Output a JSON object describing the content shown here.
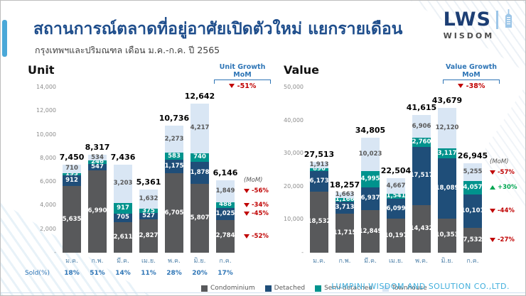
{
  "header": {
    "title": "สถานการณ์ตลาดที่อยู่อาศัยเปิดตัวใหม่ แยกรายเดือน",
    "subtitle": "กรุงเทพฯและปริมณฑล เดือน ม.ค.-ก.ค. ปี 2565",
    "logo": {
      "name": "LWS",
      "sub": "WISDOM"
    }
  },
  "footer": {
    "company": "LUMPINI WISDOM AND SOLUTION CO.,LTD."
  },
  "legend": [
    {
      "label": "Condominium",
      "color": "#58595B"
    },
    {
      "label": "Detached",
      "color": "#1F4E79"
    },
    {
      "label": "Semi-detached",
      "color": "#00938D"
    },
    {
      "label": "Townhouse",
      "color": "#D9E6F4"
    }
  ],
  "colors": {
    "accent_blue": "#2E75B6",
    "negative_red": "#C00000",
    "positive_green": "#00A651",
    "title_blue": "#1F4E8C"
  },
  "chart_data": [
    {
      "id": "unit",
      "type": "bar",
      "stacked": true,
      "title": "Unit",
      "growth": {
        "label": "Unit Growth",
        "sub": "MoM",
        "value": "-51%",
        "direction": "down"
      },
      "ylim": [
        0,
        14000
      ],
      "yticks": [
        {
          "label": "14,000",
          "value": 14000
        },
        {
          "label": "12,000",
          "value": 12000
        },
        {
          "label": "10,000",
          "value": 10000
        },
        {
          "label": "8,000",
          "value": 8000
        },
        {
          "label": "6,000",
          "value": 6000
        },
        {
          "label": "4,000",
          "value": 4000
        },
        {
          "label": "2,000",
          "value": 2000
        },
        {
          "label": "-",
          "value": 0
        }
      ],
      "categories": [
        "ม.ค.",
        "ก.พ.",
        "มี.ค.",
        "เม.ย.",
        "พ.ค.",
        "มิ.ย.",
        "ก.ค."
      ],
      "totals": [
        7450,
        8317,
        7436,
        5361,
        10736,
        12642,
        6146
      ],
      "series": [
        {
          "name": "Condominium",
          "color": "#58595B",
          "label_color": "#FFFFFF",
          "values": [
            5635,
            6990,
            2611,
            2827,
            6705,
            5807,
            2784
          ]
        },
        {
          "name": "Detached",
          "color": "#1F4E79",
          "label_color": "#FFFFFF",
          "values": [
            912,
            547,
            705,
            527,
            1175,
            1878,
            1025
          ]
        },
        {
          "name": "Semi-detached",
          "color": "#00938D",
          "label_color": "#FFFFFF",
          "values": [
            193,
            246,
            917,
            375,
            583,
            740,
            488
          ]
        },
        {
          "name": "Townhouse",
          "color": "#D9E6F4",
          "label_color": "#595959",
          "values": [
            710,
            534,
            3203,
            1632,
            2273,
            4217,
            1849
          ]
        }
      ],
      "mom_header": "(MoM)",
      "mom": [
        {
          "series": "Condominium",
          "value": "-52%",
          "direction": "down"
        },
        {
          "series": "Detached",
          "value": "-45%",
          "direction": "down"
        },
        {
          "series": "Semi-detached",
          "value": "-34%",
          "direction": "down"
        },
        {
          "series": "Townhouse",
          "value": "-56%",
          "direction": "down"
        }
      ],
      "sold_label": "Sold(%)",
      "sold": [
        "18%",
        "51%",
        "14%",
        "11%",
        "28%",
        "20%",
        "17%"
      ]
    },
    {
      "id": "value",
      "type": "bar",
      "stacked": true,
      "title": "Value",
      "growth": {
        "label": "Value Growth",
        "sub": "MoM",
        "value": "-38%",
        "direction": "down"
      },
      "ylim": [
        0,
        50000
      ],
      "yticks": [
        {
          "label": "50,000",
          "value": 50000
        },
        {
          "label": "40,000",
          "value": 40000
        },
        {
          "label": "30,000",
          "value": 30000
        },
        {
          "label": "20,000",
          "value": 20000
        },
        {
          "label": "10,000",
          "value": 10000
        },
        {
          "label": "-",
          "value": 0
        }
      ],
      "categories": [
        "ม.ค.",
        "ก.พ.",
        "มี.ค.",
        "เม.ย.",
        "พ.ค.",
        "มิ.ย.",
        "ก.ค."
      ],
      "totals": [
        27513,
        18257,
        34805,
        22504,
        41615,
        43679,
        26945
      ],
      "series": [
        {
          "name": "Condominium",
          "color": "#58595B",
          "label_color": "#FFFFFF",
          "values": [
            18532,
            11715,
            12849,
            10197,
            14432,
            10353,
            7532
          ]
        },
        {
          "name": "Detached",
          "color": "#1F4E79",
          "label_color": "#FFFFFF",
          "values": [
            6173,
            3713,
            6937,
            6099,
            17517,
            18089,
            10101
          ]
        },
        {
          "name": "Semi-detached",
          "color": "#00938D",
          "label_color": "#FFFFFF",
          "values": [
            896,
            1166,
            4995,
            1541,
            2760,
            3117,
            4057
          ]
        },
        {
          "name": "Townhouse",
          "color": "#D9E6F4",
          "label_color": "#595959",
          "values": [
            1913,
            1663,
            10023,
            4667,
            6906,
            12120,
            5255
          ]
        }
      ],
      "mom_header": "(MoM)",
      "mom": [
        {
          "series": "Condominium",
          "value": "-27%",
          "direction": "down"
        },
        {
          "series": "Detached",
          "value": "-44%",
          "direction": "down"
        },
        {
          "series": "Semi-detached",
          "value": "+30%",
          "direction": "up"
        },
        {
          "series": "Townhouse",
          "value": "-57%",
          "direction": "down"
        }
      ],
      "sold_label": null,
      "sold": null
    }
  ]
}
